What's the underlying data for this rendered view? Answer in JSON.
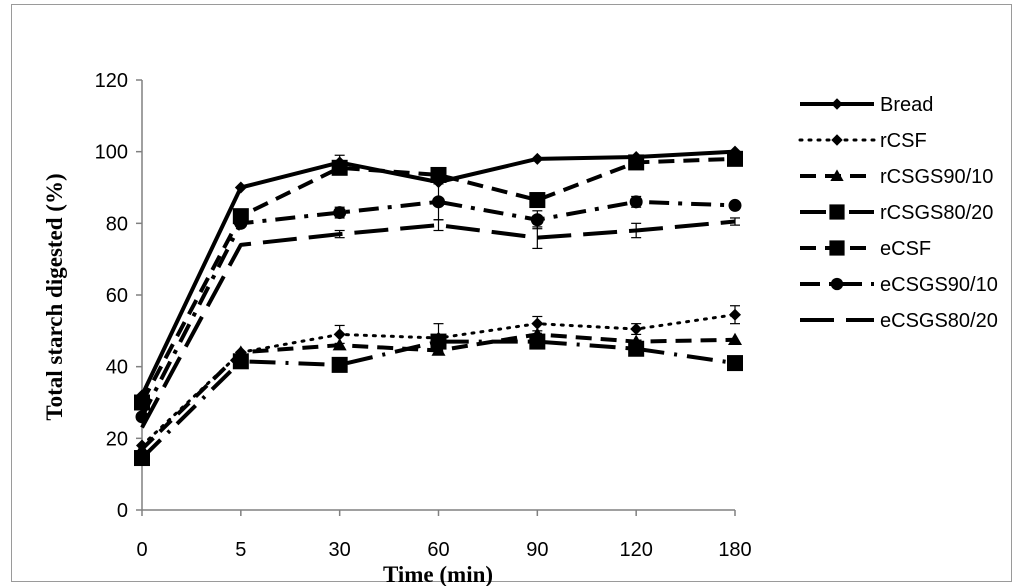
{
  "chart_data": {
    "type": "line",
    "title": "",
    "xlabel": "Time (min)",
    "ylabel": "Total starch digested (%)",
    "ylim": [
      0,
      120
    ],
    "yticks": [
      0,
      20,
      40,
      60,
      80,
      100,
      120
    ],
    "categories": [
      "0",
      "5",
      "30",
      "60",
      "90",
      "120",
      "180"
    ],
    "grid": false,
    "legend_position": "right",
    "series": [
      {
        "name": "Bread",
        "marker": "diamond",
        "dash": "solid",
        "values": [
          32,
          90,
          97,
          91.5,
          98,
          98.5,
          100
        ],
        "errors": [
          0,
          0,
          2,
          0,
          0,
          0,
          0
        ]
      },
      {
        "name": "rCSF",
        "marker": "diamond",
        "dash": "dotted",
        "values": [
          18,
          44,
          49,
          48,
          52,
          50.5,
          54.5
        ],
        "errors": [
          0,
          0,
          2.5,
          4,
          2,
          1.5,
          2.5
        ]
      },
      {
        "name": "rCSGS90/10",
        "marker": "triangle",
        "dash": "dashed",
        "values": [
          17,
          44,
          46,
          44.5,
          49,
          47,
          47.5
        ],
        "errors": [
          0,
          0,
          0,
          0,
          0,
          0,
          0
        ]
      },
      {
        "name": "rCSGS80/20",
        "marker": "square",
        "dash": "longdot",
        "values": [
          14.5,
          41.5,
          40.5,
          47,
          47,
          45,
          41
        ],
        "errors": [
          0,
          0,
          0,
          0,
          0,
          0,
          0
        ]
      },
      {
        "name": "eCSF",
        "marker": "square",
        "dash": "dashed",
        "values": [
          30,
          82,
          95.5,
          93.5,
          86.5,
          97,
          98
        ],
        "errors": [
          0,
          0,
          0,
          0,
          0,
          0,
          0
        ]
      },
      {
        "name": "eCSGS90/10",
        "marker": "circle",
        "dash": "dashdot",
        "values": [
          26,
          80,
          83,
          86,
          81,
          86,
          85
        ],
        "errors": [
          0,
          0,
          1.5,
          5,
          2.5,
          1.5,
          0
        ]
      },
      {
        "name": "eCSGS80/20",
        "marker": "none",
        "dash": "longdash",
        "values": [
          23,
          74,
          77,
          79.5,
          76,
          78,
          80.5
        ],
        "errors": [
          0,
          0,
          1,
          1.5,
          3,
          2,
          1
        ]
      }
    ]
  }
}
